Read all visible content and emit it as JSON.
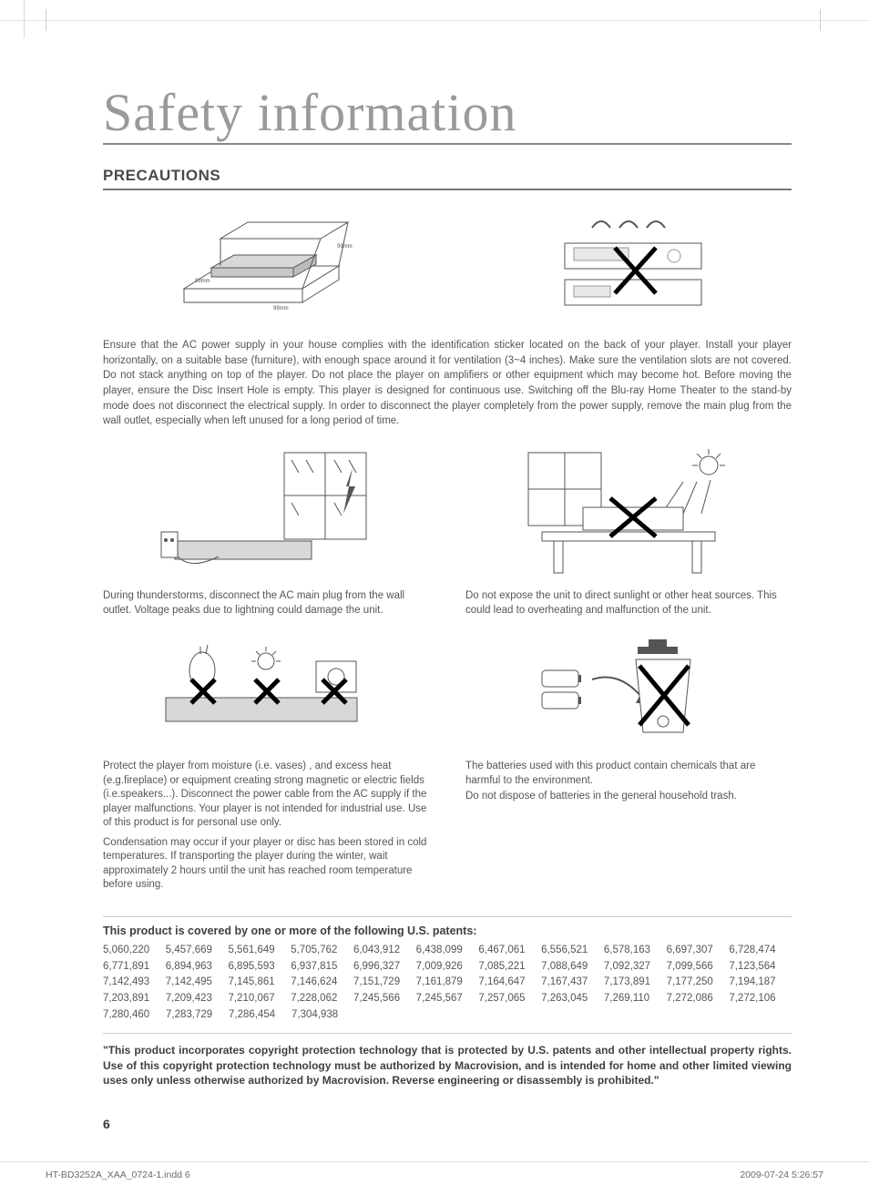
{
  "title": "Safety information",
  "section": "PRECAUTIONS",
  "para1": "Ensure that the AC power supply in your house complies with the identification sticker located on the back of your player. Install your player horizontally, on a suitable base (furniture), with enough space around it for ventilation (3~4 inches). Make sure the ventilation slots are not covered. Do not stack anything on top of the player. Do not place the player on amplifiers or other equipment which may become hot. Before moving the player, ensure the Disc Insert Hole is empty. This player is designed for continuous use. Switching off the Blu-ray Home Theater to the stand-by mode does not disconnect the electrical supply. In order to disconnect the player completely from the power supply, remove the main plug from the wall outlet, especially when left unused for a long period of time.",
  "cap_thunder": "During thunderstorms, disconnect the AC main plug from the wall outlet. Voltage peaks due to lightning could damage the unit.",
  "cap_sun": "Do not expose the unit to direct sunlight or other heat sources. This could lead to overheating and malfunction of the unit.",
  "cap_moist_a": "Protect the player from moisture (i.e. vases) , and excess heat (e.g.fireplace) or equipment creating strong magnetic or electric fields (i.e.speakers...). Disconnect the power cable from the AC supply if the player malfunctions. Your player is not intended for industrial use. Use of this product is for personal use only.",
  "cap_moist_b": "Condensation may occur if your player or disc has been stored in cold temperatures. If transporting the player during the winter, wait approximately 2 hours until the unit has reached room temperature before using.",
  "cap_batt_a": "The batteries used with this product contain chemicals that are harmful to the environment.",
  "cap_batt_b": "Do not dispose of batteries in the general household trash.",
  "patents_title": "This product is covered by one or more of the following U.S. patents:",
  "patents": [
    [
      "5,060,220",
      "5,457,669",
      "5,561,649",
      "5,705,762",
      "6,043,912",
      "6,438,099",
      "6,467,061",
      "6,556,521",
      "6,578,163",
      "6,697,307",
      "6,728,474"
    ],
    [
      "6,771,891",
      "6,894,963",
      "6,895,593",
      "6,937,815",
      "6,996,327",
      "7,009,926",
      "7,085,221",
      "7,088,649",
      "7,092,327",
      "7,099,566",
      "7,123,564"
    ],
    [
      "7,142,493",
      "7,142,495",
      "7,145,861",
      "7,146,624",
      "7,151,729",
      "7,161,879",
      "7,164,647",
      "7,167,437",
      "7,173,891",
      "7,177,250",
      "7,194,187"
    ],
    [
      "7,203,891",
      "7,209,423",
      "7,210,067",
      "7,228,062",
      "7,245,566",
      "7,245,567",
      "7,257,065",
      "7,263,045",
      "7,269,110",
      "7,272,086",
      "7,272,106"
    ],
    [
      "7,280,460",
      "7,283,729",
      "7,286,454",
      "7,304,938"
    ]
  ],
  "legal": "\"This product incorporates copyright protection technology that is protected by U.S. patents and other intellectual property rights. Use of this copyright protection technology must be authorized by Macrovision, and is intended for home and other limited viewing uses only unless otherwise authorized by Macrovision.  Reverse engineering or disassembly is prohibited.\"",
  "page_number": "6",
  "footer_file": "HT-BD3252A_XAA_0724-1.indd   6",
  "footer_time": "2009-07-24    5:26:57",
  "colors": {
    "title": "#9a9a9a",
    "rule": "#888888",
    "text": "#4a4a4a"
  }
}
